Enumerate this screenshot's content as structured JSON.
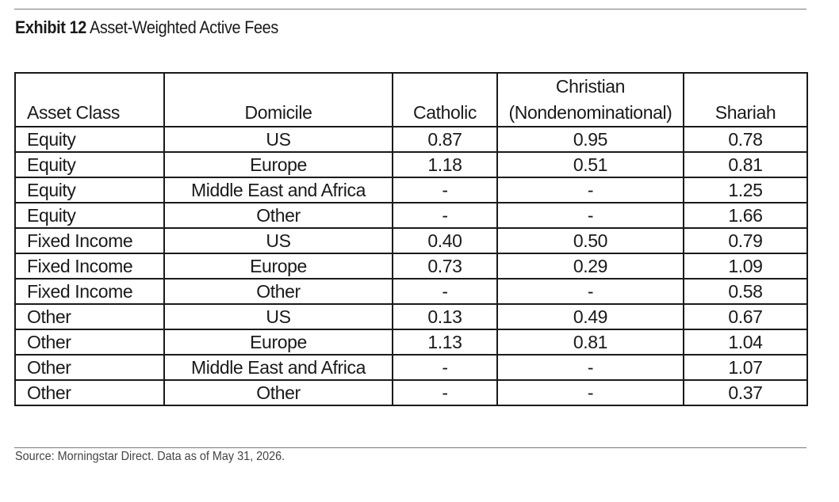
{
  "exhibit": {
    "number_label": "Exhibit 12",
    "title": "Asset-Weighted Active Fees"
  },
  "table": {
    "headers": {
      "asset_class": "Asset Class",
      "domicile": "Domicile",
      "catholic": "Catholic",
      "christian_line1": "Christian",
      "christian_line2": "(Nondenominational)",
      "shariah": "Shariah"
    },
    "rows": [
      [
        "Equity",
        "US",
        "0.87",
        "0.95",
        "0.78"
      ],
      [
        "Equity",
        "Europe",
        "1.18",
        "0.51",
        "0.81"
      ],
      [
        "Equity",
        "Middle East and Africa",
        "-",
        "-",
        "1.25"
      ],
      [
        "Equity",
        "Other",
        "-",
        "-",
        "1.66"
      ],
      [
        "Fixed Income",
        "US",
        "0.40",
        "0.50",
        "0.79"
      ],
      [
        "Fixed Income",
        "Europe",
        "0.73",
        "0.29",
        "1.09"
      ],
      [
        "Fixed Income",
        "Other",
        "-",
        "-",
        "0.58"
      ],
      [
        "Other",
        "US",
        "0.13",
        "0.49",
        "0.67"
      ],
      [
        "Other",
        "Europe",
        "1.13",
        "0.81",
        "1.04"
      ],
      [
        "Other",
        "Middle East and Africa",
        "-",
        "-",
        "1.07"
      ],
      [
        "Other",
        "Other",
        "-",
        "-",
        "0.37"
      ]
    ]
  },
  "source_note": "Source: Morningstar Direct. Data as of May 31, 2026."
}
